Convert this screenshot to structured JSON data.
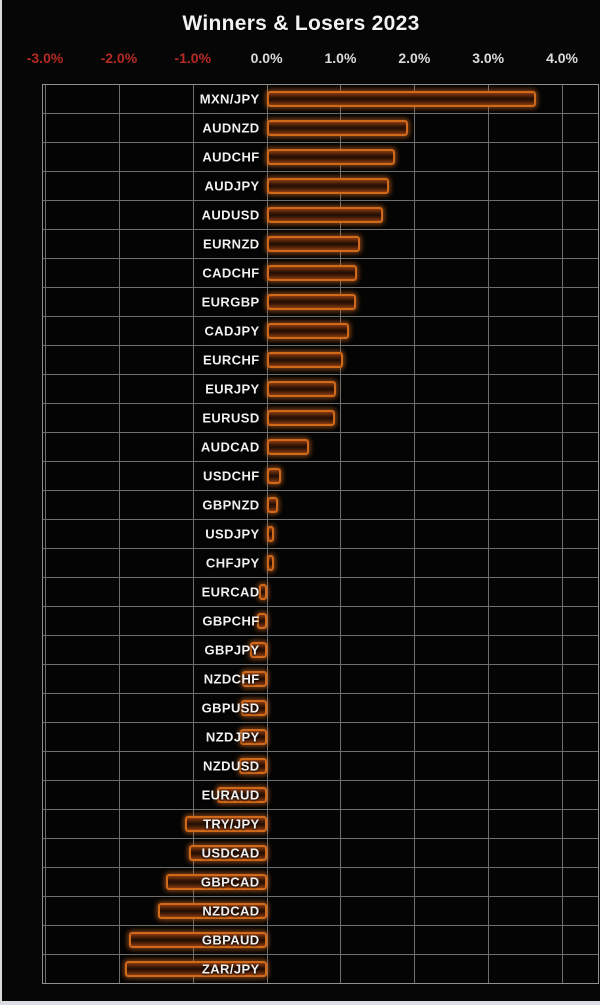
{
  "chart_data": {
    "type": "bar",
    "orientation": "horizontal",
    "title": "Winners & Losers 2023",
    "xlabel": "",
    "ylabel": "",
    "unit": "%",
    "grid": true,
    "xlim": [
      -3.05,
      4.5
    ],
    "x_ticks": [
      {
        "label": "-3.0%",
        "value": -3.0
      },
      {
        "label": "-2.0%",
        "value": -2.0
      },
      {
        "label": "-1.0%",
        "value": -1.0
      },
      {
        "label": "0.0%",
        "value": 0.0
      },
      {
        "label": "1.0%",
        "value": 1.0
      },
      {
        "label": "2.0%",
        "value": 2.0
      },
      {
        "label": "3.0%",
        "value": 3.0
      },
      {
        "label": "4.0%",
        "value": 4.0
      }
    ],
    "categories": [
      "MXN/JPY",
      "AUDNZD",
      "AUDCHF",
      "AUDJPY",
      "AUDUSD",
      "EURNZD",
      "CADCHF",
      "EURGBP",
      "CADJPY",
      "EURCHF",
      "EURJPY",
      "EURUSD",
      "AUDCAD",
      "USDCHF",
      "GBPNZD",
      "USDJPY",
      "CHFJPY",
      "EURCAD",
      "GBPCHF",
      "GBPJPY",
      "NZDCHF",
      "GBPUSD",
      "NZDJPY",
      "NZDUSD",
      "EURAUD",
      "TRY/JPY",
      "USDCAD",
      "GBPCAD",
      "NZDCAD",
      "GBPAUD",
      "ZAR/JPY"
    ],
    "values": [
      3.65,
      1.92,
      1.74,
      1.66,
      1.58,
      1.26,
      1.22,
      1.21,
      1.12,
      1.04,
      0.94,
      0.93,
      0.57,
      0.2,
      0.16,
      0.06,
      0.03,
      -0.1,
      -0.13,
      -0.22,
      -0.33,
      -0.35,
      -0.36,
      -0.38,
      -0.67,
      -1.1,
      -1.05,
      -1.36,
      -1.47,
      -1.86,
      -1.92
    ]
  },
  "colors": {
    "background": "#060606",
    "plot_background": "#040404",
    "plot_border": "#8f8f8f",
    "gridline": "#6e6e6e",
    "row_separator": "#6f6f6f",
    "bar_border": "#d0691a",
    "bar_glow": "#e87422",
    "bar_fill_dark": "#200d03",
    "bar_fill_light": "#8a3c10",
    "title_text": "#f2f2f2",
    "tick_positive": "#dcdcdc",
    "tick_negative": "#b52a22",
    "bar_label_text": "#f0f0f0"
  }
}
